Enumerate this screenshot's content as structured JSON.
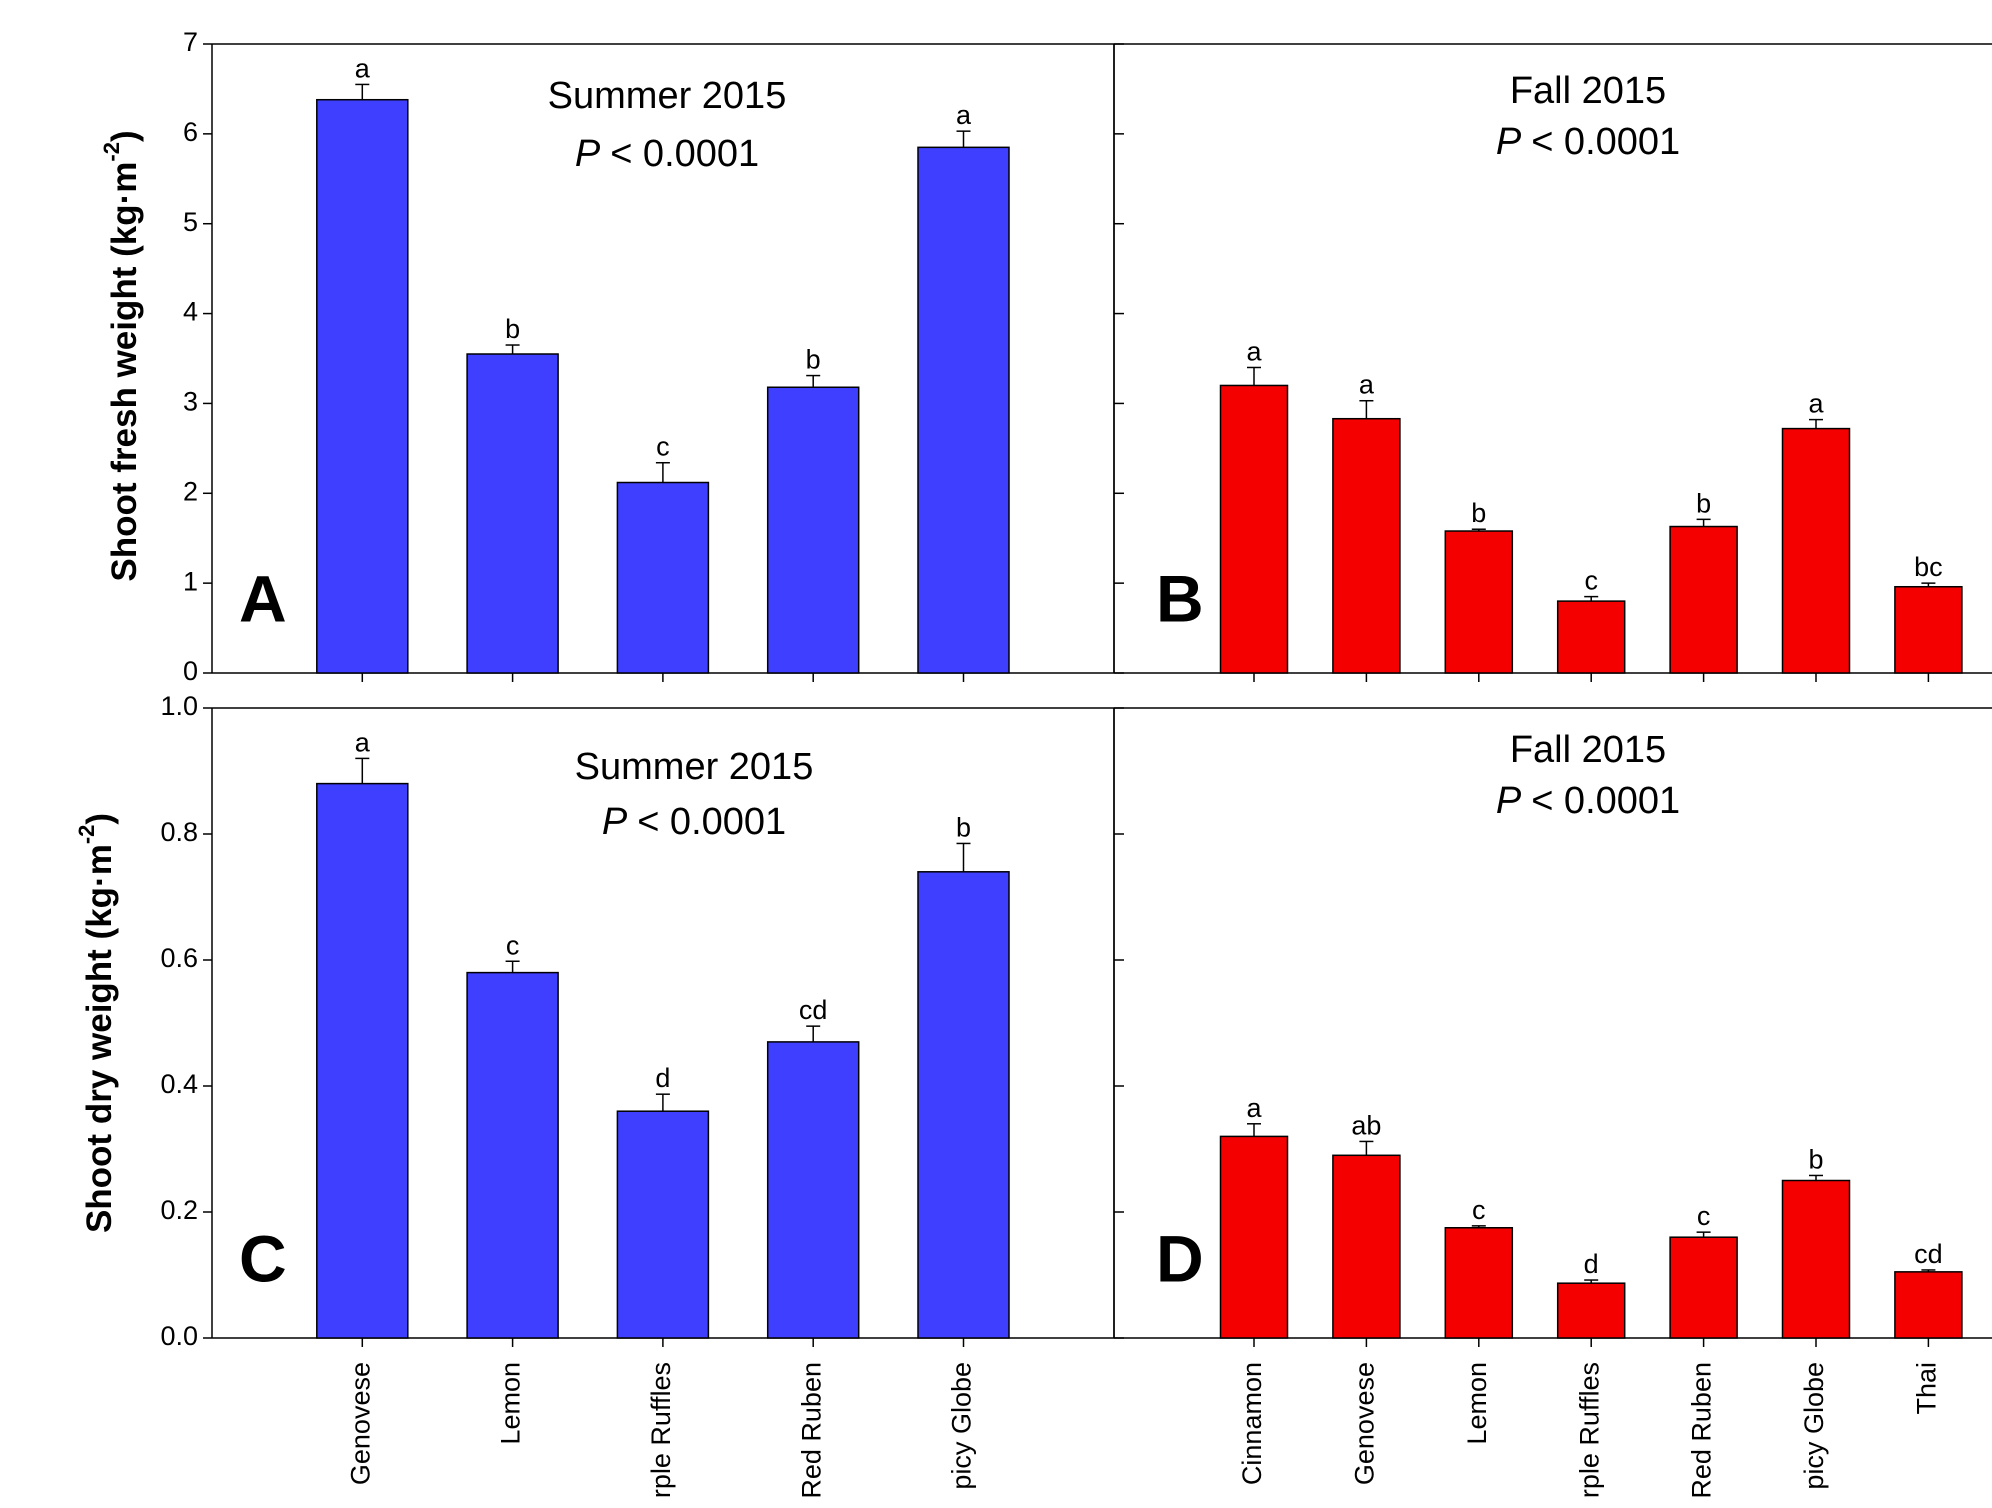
{
  "chart_data": [
    {
      "type": "bar",
      "panel": "A",
      "title": "Summer 2015",
      "p_label": "P",
      "p_value": "< 0.0001",
      "ylabel": "Shoot fresh weight (kg·m",
      "ylabel_sup": "-2",
      "ylabel_end": ")",
      "categories": [
        null,
        null,
        null,
        null,
        null
      ],
      "values": [
        6.38,
        3.55,
        2.12,
        3.18,
        5.85
      ],
      "errors": [
        0.17,
        0.1,
        0.22,
        0.13,
        0.18
      ],
      "letters": [
        "a",
        "b",
        "c",
        "b",
        "a"
      ],
      "color": "#3f3fff",
      "ylim": [
        0,
        7
      ],
      "yticks": [
        0,
        1,
        2,
        3,
        4,
        5,
        6,
        7
      ],
      "show_ytick_labels": true
    },
    {
      "type": "bar",
      "panel": "B",
      "title": "Fall 2015",
      "p_label": "P",
      "p_value": "< 0.0001",
      "categories": [
        null,
        null,
        null,
        null,
        null,
        null,
        null
      ],
      "values": [
        3.2,
        2.83,
        1.58,
        0.8,
        1.63,
        2.72,
        0.96
      ],
      "errors": [
        0.2,
        0.2,
        0.02,
        0.05,
        0.08,
        0.1,
        0.04
      ],
      "letters": [
        "a",
        "a",
        "b",
        "c",
        "b",
        "a",
        "bc"
      ],
      "color": "#f40000",
      "ylim": [
        0,
        7
      ],
      "yticks": [
        0,
        1,
        2,
        3,
        4,
        5,
        6,
        7
      ],
      "show_ytick_labels": false
    },
    {
      "type": "bar",
      "panel": "C",
      "title": "Summer 2015",
      "p_label": "P",
      "p_value": "< 0.0001",
      "ylabel": "Shoot dry weight (kg·m",
      "ylabel_sup": "-2",
      "ylabel_end": ")",
      "categories": [
        "Genovese",
        "Lemon",
        "rple Ruffles",
        "Red Ruben",
        "picy Globe"
      ],
      "values": [
        0.88,
        0.58,
        0.36,
        0.47,
        0.74
      ],
      "errors": [
        0.04,
        0.018,
        0.027,
        0.025,
        0.045
      ],
      "letters": [
        "a",
        "c",
        "d",
        "cd",
        "b"
      ],
      "color": "#3f3fff",
      "ylim": [
        0,
        1
      ],
      "yticks": [
        {
          "value": 0,
          "label": "0.0"
        },
        0.2,
        0.4,
        0.6,
        0.8,
        {
          "value": 1,
          "label": "1.0"
        }
      ],
      "show_ytick_labels": true
    },
    {
      "type": "bar",
      "panel": "D",
      "title": "Fall 2015",
      "p_label": "P",
      "p_value": "< 0.0001",
      "categories": [
        "Cinnamon",
        "Genovese",
        "Lemon",
        "rple Ruffles",
        "Red Ruben",
        "picy Globe",
        "Thai"
      ],
      "values": [
        0.32,
        0.29,
        0.175,
        0.087,
        0.16,
        0.25,
        0.105
      ],
      "errors": [
        0.02,
        0.022,
        0.003,
        0.005,
        0.008,
        0.008,
        0.003
      ],
      "letters": [
        "a",
        "ab",
        "c",
        "d",
        "c",
        "b",
        "cd"
      ],
      "color": "#f40000",
      "ylim": [
        0,
        1
      ],
      "yticks": [
        {
          "value": 0,
          "label": "0.0"
        },
        0.2,
        0.4,
        0.6,
        0.8,
        {
          "value": 1,
          "label": "1.0"
        }
      ],
      "show_ytick_labels": false
    }
  ]
}
